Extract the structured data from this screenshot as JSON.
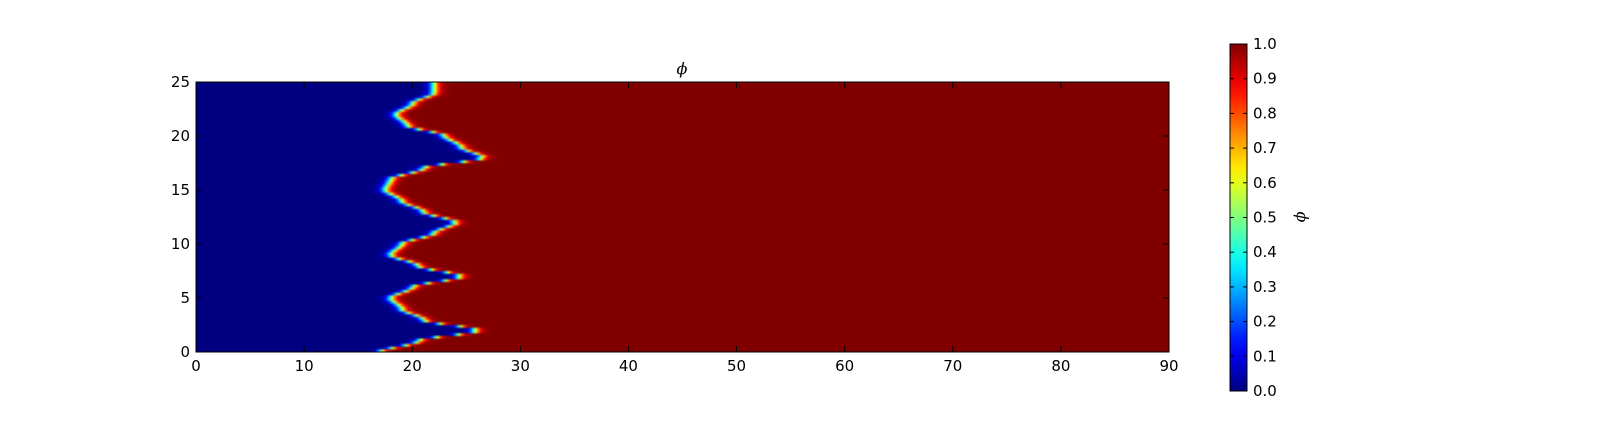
{
  "chart_data": {
    "type": "heatmap",
    "title": "ϕ",
    "xlabel": "",
    "ylabel": "",
    "xlim": [
      0,
      90
    ],
    "ylim": [
      0,
      25
    ],
    "x_ticks": [
      "0",
      "10",
      "20",
      "30",
      "40",
      "50",
      "60",
      "70",
      "80",
      "90"
    ],
    "y_ticks": [
      "0",
      "5",
      "10",
      "15",
      "20",
      "25"
    ],
    "colormap": "jet",
    "colorbar": {
      "label": "ϕ",
      "range": [
        0.0,
        1.0
      ],
      "ticks": [
        "0.0",
        "0.1",
        "0.2",
        "0.3",
        "0.4",
        "0.5",
        "0.6",
        "0.7",
        "0.8",
        "0.9",
        "1.0"
      ]
    },
    "field": {
      "description_values": "phi = 0 on the left region, phi = 1 on the right region, with a wavy interface",
      "low_value": 0.0,
      "high_value": 1.0,
      "interface_profile": {
        "y": [
          0,
          1,
          2,
          3,
          4,
          5,
          6,
          7,
          8,
          9,
          10,
          11,
          12,
          13,
          14,
          15,
          16,
          17,
          18,
          19,
          20,
          21,
          22,
          23,
          24,
          25
        ],
        "x": [
          17,
          20.5,
          26,
          21,
          19,
          18,
          20,
          24.5,
          20.5,
          18,
          19,
          22,
          24,
          21,
          19,
          17.5,
          18,
          21,
          26.5,
          24.5,
          23,
          19.5,
          18.5,
          20,
          22,
          22
        ]
      },
      "interface_width": 0.8
    },
    "grid": false,
    "legend": "colorbar-right"
  }
}
